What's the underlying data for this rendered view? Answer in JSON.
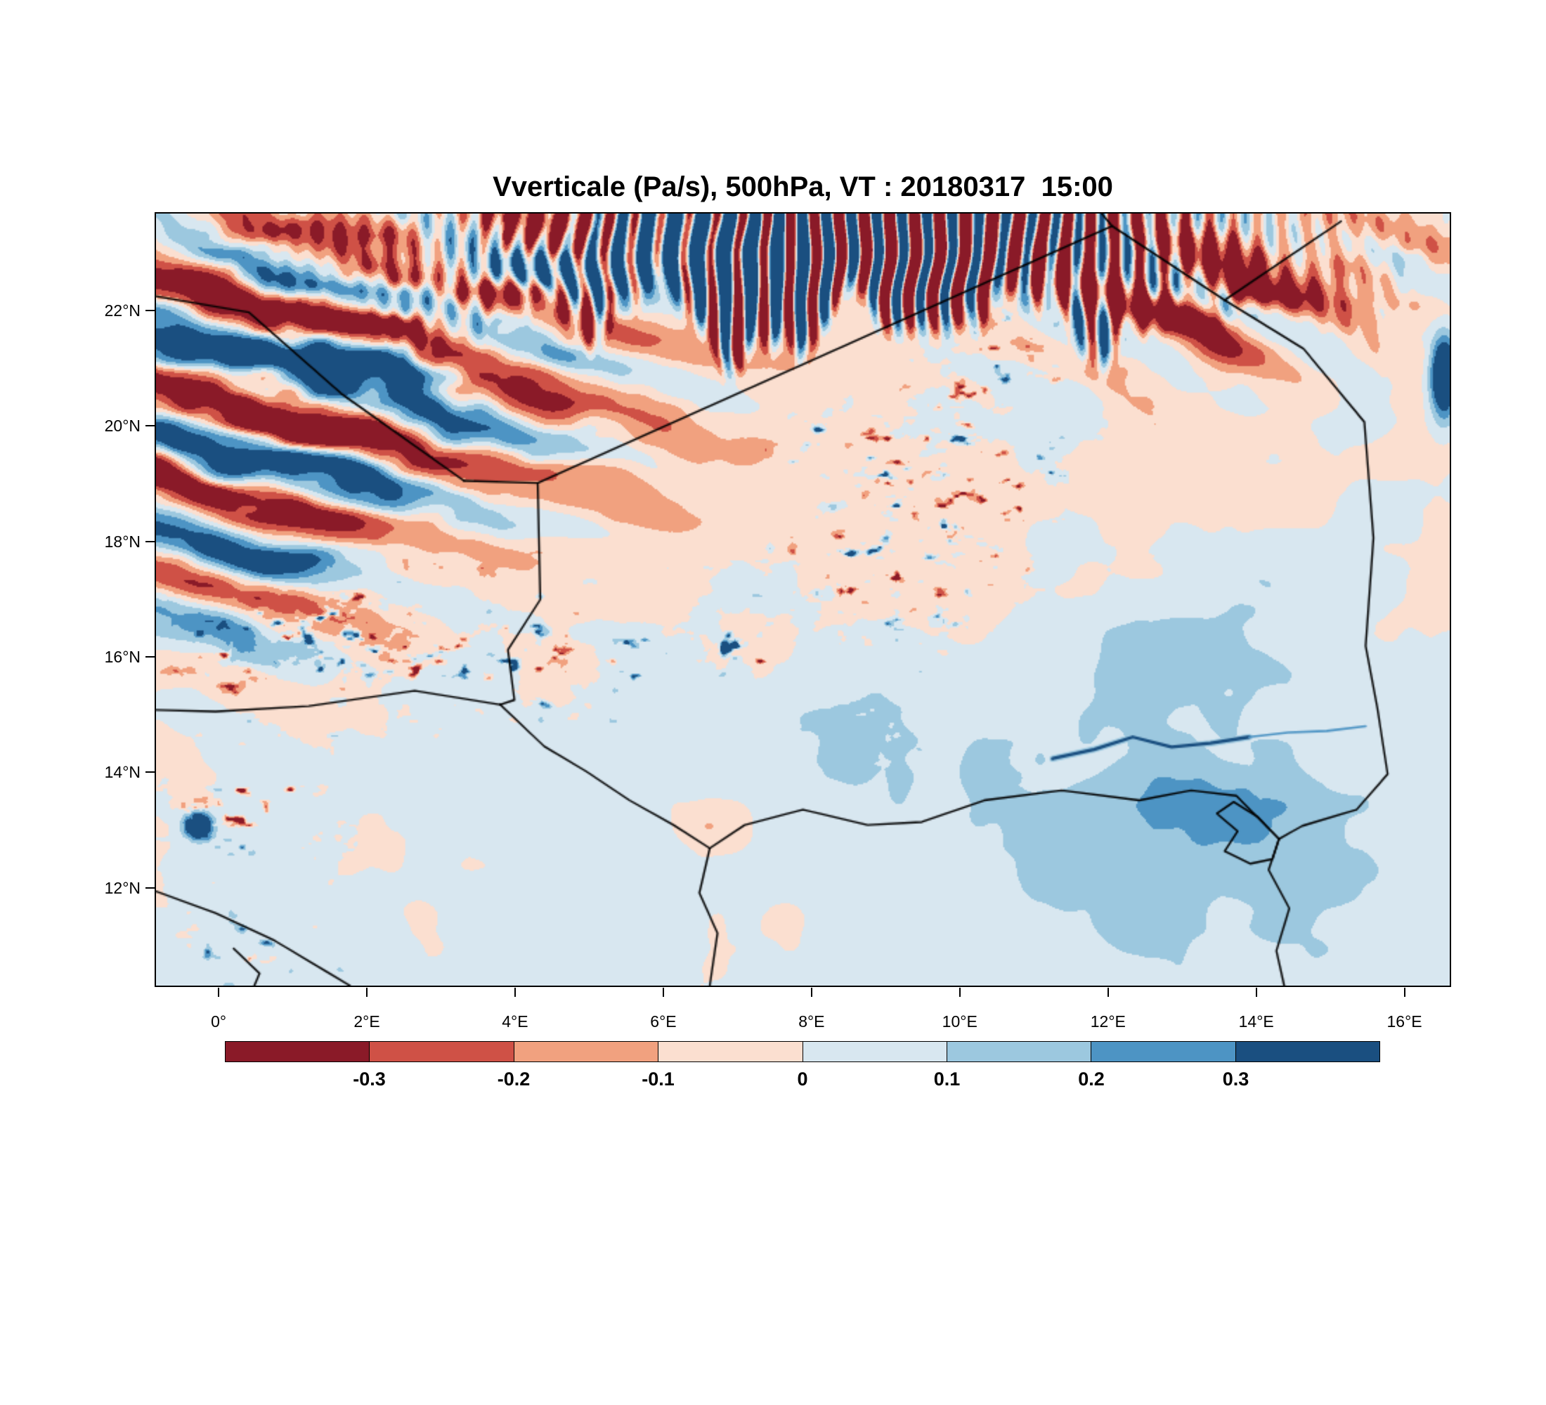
{
  "figure": {
    "title": "Vverticale (Pa/s), 500hPa, VT : 20180317  15:00"
  },
  "axes": {
    "x": {
      "ticks": [
        {
          "label": "0°",
          "pos": 0.0494
        },
        {
          "label": "2°E",
          "pos": 0.1637
        },
        {
          "label": "4°E",
          "pos": 0.278
        },
        {
          "label": "6°E",
          "pos": 0.3924
        },
        {
          "label": "8°E",
          "pos": 0.5067
        },
        {
          "label": "10°E",
          "pos": 0.621
        },
        {
          "label": "12°E",
          "pos": 0.7354
        },
        {
          "label": "14°E",
          "pos": 0.8497
        },
        {
          "label": "16°E",
          "pos": 0.964
        }
      ]
    },
    "y": {
      "ticks": [
        {
          "label": "22°N",
          "pos": 0.127
        },
        {
          "label": "20°N",
          "pos": 0.276
        },
        {
          "label": "18°N",
          "pos": 0.425
        },
        {
          "label": "16°N",
          "pos": 0.574
        },
        {
          "label": "14°N",
          "pos": 0.723
        },
        {
          "label": "12°N",
          "pos": 0.872
        }
      ]
    }
  },
  "colorbar": {
    "labels": [
      "-0.3",
      "-0.2",
      "-0.1",
      "0",
      "0.1",
      "0.2",
      "0.3"
    ]
  },
  "chart_data": {
    "type": "heatmap",
    "title": "Vverticale (Pa/s), 500hPa, VT : 20180317  15:00",
    "variable": "Vverticale",
    "units": "Pa/s",
    "level": "500hPa",
    "valid_time": "20180317 15:00",
    "x_ticks": [
      "0°",
      "2°E",
      "4°E",
      "6°E",
      "8°E",
      "10°E",
      "12°E",
      "14°E",
      "16°E"
    ],
    "y_ticks": [
      "12°N",
      "14°N",
      "16°N",
      "18°N",
      "20°N",
      "22°N"
    ],
    "levels": [
      -0.3,
      -0.2,
      -0.1,
      0,
      0.1,
      0.2,
      0.3
    ],
    "palette": [
      "#8a1a28",
      "#cf5146",
      "#f1a17f",
      "#fbdfd0",
      "#d8e7f0",
      "#9cc8df",
      "#4d94c4",
      "#1a4f80"
    ],
    "legend_position": "bottom",
    "grid": false,
    "field_synthesis": {
      "seed": 20180317,
      "base_amp_hi": 0.085,
      "base_fx": 13,
      "base_fy": 8.5,
      "base_amp_lo": 0.05,
      "grad": 0.08,
      "offset": 0.005,
      "features": [
        {
          "t": "st",
          "x": 0.11,
          "y": 0.2,
          "sx": 0.17,
          "sy": 0.15,
          "dx": -0.41,
          "dy": 0.91,
          "f": 9.0,
          "a": 0.52,
          "ph": 1.8,
          "wb": 2.2,
          "o": 3.1
        },
        {
          "t": "st",
          "x": 0.06,
          "y": 0.42,
          "sx": 0.09,
          "sy": 0.12,
          "dx": -0.41,
          "dy": 0.91,
          "f": 9.5,
          "a": 0.3,
          "ph": 0.6,
          "wb": 2.0,
          "o": 8.4
        },
        {
          "t": "st",
          "x": 0.27,
          "y": 0.09,
          "sx": 0.07,
          "sy": 0.07,
          "dx": -0.35,
          "dy": 0.94,
          "f": 8.0,
          "a": 0.3,
          "ph": 2.4,
          "wb": 1.5,
          "o": 5.9
        },
        {
          "t": "wt",
          "x": 0.54,
          "y": 0.035,
          "sx": 0.17,
          "sy": 0.14,
          "f": 52,
          "a": 0.95,
          "ph": 0.3,
          "wb": 1.2,
          "o": 2.2
        },
        {
          "t": "b",
          "x": 0.4,
          "y": 0.03,
          "sx": 0.055,
          "sy": 0.045,
          "a": 0.5
        },
        {
          "t": "b",
          "x": 0.47,
          "y": 0.07,
          "sx": 0.04,
          "sy": 0.035,
          "a": 0.35
        },
        {
          "t": "b",
          "x": 0.31,
          "y": 0.015,
          "sx": 0.035,
          "sy": 0.03,
          "a": -0.45
        },
        {
          "t": "b",
          "x": 0.63,
          "y": 0.05,
          "sx": 0.1,
          "sy": 0.045,
          "a": -0.18
        },
        {
          "t": "st",
          "x": 0.8,
          "y": 0.11,
          "sx": 0.09,
          "sy": 0.065,
          "dx": 0.66,
          "dy": -0.75,
          "f": 11,
          "a": 0.38,
          "ph": 0.9,
          "wb": 1.8,
          "o": 11.3
        },
        {
          "t": "b",
          "x": 0.8,
          "y": 0.1,
          "sx": 0.085,
          "sy": 0.055,
          "a": -0.22
        },
        {
          "t": "st",
          "x": 0.95,
          "y": 0.065,
          "sx": 0.05,
          "sy": 0.04,
          "dx": 0.6,
          "dy": -0.8,
          "f": 12,
          "a": 0.25,
          "ph": 1.4,
          "wb": 1.5,
          "o": 6.6
        },
        {
          "t": "b",
          "x": 0.995,
          "y": 0.21,
          "sx": 0.007,
          "sy": 0.035,
          "a": 0.75
        },
        {
          "t": "sp",
          "x": 0.555,
          "y": 0.43,
          "sx": 0.05,
          "sy": 0.09,
          "f": 52,
          "a": 0.85,
          "o": 4.4
        },
        {
          "t": "sp",
          "x": 0.625,
          "y": 0.3,
          "sx": 0.05,
          "sy": 0.08,
          "f": 52,
          "a": 0.8,
          "o": 9.9
        },
        {
          "t": "sp",
          "x": 0.2,
          "y": 0.565,
          "sx": 0.12,
          "sy": 0.055,
          "f": 50,
          "a": 0.7,
          "o": 7.2
        },
        {
          "t": "sp",
          "x": 0.145,
          "y": 0.55,
          "sx": 0.04,
          "sy": 0.03,
          "f": 55,
          "a": 0.9,
          "o": 1.9
        },
        {
          "t": "sp",
          "x": 0.445,
          "y": 0.56,
          "sx": 0.028,
          "sy": 0.016,
          "f": 48,
          "a": -0.8,
          "o": 12.7
        },
        {
          "t": "nb",
          "x": 0.8,
          "y": 0.79,
          "sx": 0.13,
          "sy": 0.14,
          "a": 0.17,
          "o": 5.5
        },
        {
          "t": "nb",
          "x": 0.82,
          "y": 0.55,
          "sx": 0.07,
          "sy": 0.08,
          "a": 0.13,
          "o": 9.1
        },
        {
          "t": "b",
          "x": 0.845,
          "y": 0.78,
          "sx": 0.03,
          "sy": 0.04,
          "a": 0.14
        },
        {
          "t": "nb",
          "x": 0.38,
          "y": 0.68,
          "sx": 0.09,
          "sy": 0.07,
          "a": 0.12,
          "o": 2.8
        },
        {
          "t": "nb",
          "x": 0.545,
          "y": 0.7,
          "sx": 0.035,
          "sy": 0.09,
          "a": 0.15,
          "o": 6.3
        },
        {
          "t": "b",
          "x": 0.425,
          "y": 0.79,
          "sx": 0.024,
          "sy": 0.024,
          "a": -0.14
        },
        {
          "t": "b",
          "x": 0.45,
          "y": 0.4,
          "sx": 0.17,
          "sy": 0.11,
          "a": -0.05
        },
        {
          "t": "b",
          "x": 0.032,
          "y": 0.792,
          "sx": 0.007,
          "sy": 0.011,
          "a": 0.85
        },
        {
          "t": "sp",
          "x": 0.06,
          "y": 0.77,
          "sx": 0.04,
          "sy": 0.04,
          "f": 50,
          "a": 0.6,
          "o": 3.7
        },
        {
          "t": "sp",
          "x": 0.05,
          "y": 0.95,
          "sx": 0.035,
          "sy": 0.028,
          "f": 50,
          "a": -0.6,
          "o": 8.8
        },
        {
          "t": "nb",
          "x": 0.93,
          "y": 0.05,
          "sx": 0.08,
          "sy": 0.045,
          "a": -0.09,
          "o": 4.9
        },
        {
          "t": "nb",
          "x": 0.15,
          "y": 0.6,
          "sx": 0.13,
          "sy": 0.1,
          "a": -0.06,
          "o": 10.2
        }
      ],
      "ribbons": [
        {
          "pts": [
            [
              0.693,
              0.706
            ],
            [
              0.725,
              0.694
            ],
            [
              0.755,
              0.678
            ],
            [
              0.785,
              0.691
            ],
            [
              0.815,
              0.686
            ],
            [
              0.845,
              0.678
            ]
          ],
          "ci": 5,
          "w": 4.6
        },
        {
          "pts": [
            [
              0.693,
              0.706
            ],
            [
              0.725,
              0.694
            ],
            [
              0.755,
              0.678
            ],
            [
              0.785,
              0.691
            ],
            [
              0.815,
              0.686
            ],
            [
              0.845,
              0.678
            ]
          ],
          "ci": 7,
          "w": 2.3
        },
        {
          "pts": [
            [
              0.845,
              0.678
            ],
            [
              0.875,
              0.672
            ],
            [
              0.905,
              0.67
            ],
            [
              0.935,
              0.664
            ]
          ],
          "ci": 6,
          "w": 1.6
        }
      ]
    },
    "map_borders": [
      [
        [
          0,
          0.107
        ],
        [
          0.072,
          0.128
        ],
        [
          0.143,
          0.233
        ],
        [
          0.238,
          0.346
        ]
      ],
      [
        [
          0.238,
          0.346
        ],
        [
          0.295,
          0.349
        ],
        [
          0.739,
          0.016
        ],
        [
          0.826,
          0.112
        ],
        [
          0.916,
          0.01
        ]
      ],
      [
        [
          0.739,
          0.016
        ],
        [
          0.731,
          0
        ]
      ],
      [
        [
          0.826,
          0.112
        ],
        [
          0.887,
          0.175
        ],
        [
          0.934,
          0.27
        ],
        [
          0.941,
          0.42
        ],
        [
          0.935,
          0.56
        ],
        [
          0.944,
          0.64
        ],
        [
          0.952,
          0.726
        ],
        [
          0.928,
          0.772
        ],
        [
          0.886,
          0.793
        ],
        [
          0.868,
          0.81
        ],
        [
          0.86,
          0.85
        ],
        [
          0.876,
          0.9
        ],
        [
          0.866,
          0.955
        ],
        [
          0.872,
          1.0
        ]
      ],
      [
        [
          0.295,
          0.349
        ],
        [
          0.297,
          0.5
        ],
        [
          0.272,
          0.565
        ],
        [
          0.277,
          0.63
        ],
        [
          0.266,
          0.636
        ]
      ],
      [
        [
          0.266,
          0.636
        ],
        [
          0.2,
          0.618
        ],
        [
          0.118,
          0.638
        ],
        [
          0.046,
          0.645
        ],
        [
          0,
          0.643
        ]
      ],
      [
        [
          0.266,
          0.636
        ],
        [
          0.3,
          0.69
        ],
        [
          0.332,
          0.722
        ],
        [
          0.366,
          0.76
        ],
        [
          0.4,
          0.792
        ],
        [
          0.428,
          0.822
        ]
      ],
      [
        [
          0.428,
          0.822
        ],
        [
          0.455,
          0.792
        ],
        [
          0.5,
          0.772
        ],
        [
          0.55,
          0.792
        ],
        [
          0.592,
          0.788
        ],
        [
          0.64,
          0.76
        ],
        [
          0.7,
          0.747
        ],
        [
          0.76,
          0.76
        ],
        [
          0.8,
          0.747
        ],
        [
          0.835,
          0.754
        ],
        [
          0.868,
          0.81
        ]
      ],
      [
        [
          0.428,
          0.822
        ],
        [
          0.42,
          0.88
        ],
        [
          0.434,
          0.932
        ],
        [
          0.428,
          1.0
        ]
      ],
      [
        [
          0,
          0.878
        ],
        [
          0.046,
          0.906
        ],
        [
          0.092,
          0.942
        ],
        [
          0.132,
          0.982
        ],
        [
          0.15,
          1.0
        ]
      ],
      [
        [
          0.06,
          0.952
        ],
        [
          0.08,
          0.984
        ],
        [
          0.076,
          1.0
        ]
      ],
      [
        [
          0.868,
          0.81
        ],
        [
          0.852,
          0.782
        ],
        [
          0.833,
          0.762
        ],
        [
          0.82,
          0.777
        ],
        [
          0.836,
          0.8
        ],
        [
          0.826,
          0.826
        ],
        [
          0.846,
          0.842
        ],
        [
          0.863,
          0.836
        ],
        [
          0.868,
          0.81
        ]
      ]
    ]
  }
}
